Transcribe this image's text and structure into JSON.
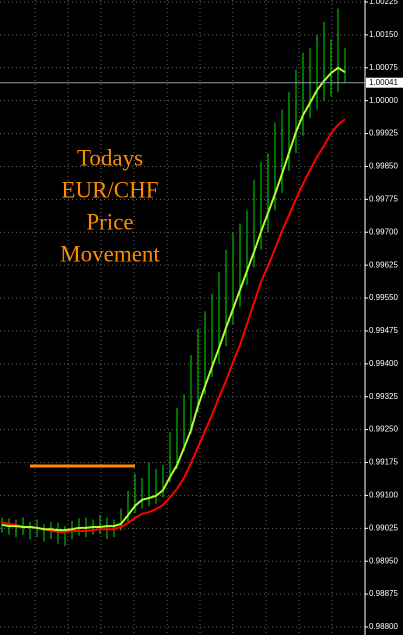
{
  "chart_data": {
    "type": "ohlc",
    "annotation": [
      "Todays",
      "EUR/CHF",
      "Price",
      "Movement"
    ],
    "annotation_color": "#ff8c00",
    "ylim": [
      0.988,
      1.00225
    ],
    "yticks": [
      1.00225,
      {
        "value": 1.0015,
        "label": "1.00150"
      },
      1.00075,
      {
        "value": 1,
        "label": "1.00000"
      },
      0.99925,
      {
        "value": 0.9985,
        "label": "0.99850"
      },
      0.99775,
      {
        "value": 0.997,
        "label": "0.99700"
      },
      0.99625,
      {
        "value": 0.9955,
        "label": "0.99550"
      },
      0.99475,
      {
        "value": 0.994,
        "label": "0.99400"
      },
      0.99325,
      {
        "value": 0.9925,
        "label": "0.99250"
      },
      0.99175,
      {
        "value": 0.991,
        "label": "0.99100"
      },
      0.99025,
      {
        "value": 0.9895,
        "label": "0.98950"
      },
      0.98875,
      {
        "value": 0.988,
        "label": "0.98800"
      }
    ],
    "grid": true,
    "current_price": 1.00041,
    "level_line": {
      "value": 0.99167,
      "color": "#ff8c00"
    },
    "bars": {
      "color": "#00e000",
      "high": [
        0.9905,
        0.99048,
        0.99045,
        0.9905,
        0.9904,
        0.99045,
        0.99035,
        0.9904,
        0.99038,
        0.9903,
        0.99042,
        0.99048,
        0.9905,
        0.99045,
        0.99055,
        0.9905,
        0.99045,
        0.9907,
        0.9911,
        0.9915,
        0.9914,
        0.99175,
        0.9916,
        0.9917,
        0.99245,
        0.993,
        0.9933,
        0.9942,
        0.9948,
        0.9952,
        0.9956,
        0.9961,
        0.9966,
        0.997,
        0.9972,
        0.9975,
        0.9982,
        0.9986,
        0.9988,
        0.9995,
        0.9998,
        1.0002,
        1.0007,
        1.0011,
        1.0012,
        1.0015,
        1.0018,
        1.0014,
        1.0021,
        1.0012
      ],
      "low": [
        0.99015,
        0.9901,
        0.99005,
        0.9901,
        0.99,
        0.99005,
        0.98995,
        0.99,
        0.9899,
        0.98985,
        0.99,
        0.99008,
        0.99005,
        0.9901,
        0.99012,
        0.99,
        0.99005,
        0.9902,
        0.9904,
        0.9906,
        0.9907,
        0.99075,
        0.9908,
        0.99095,
        0.9913,
        0.9916,
        0.992,
        0.9924,
        0.9929,
        0.9933,
        0.9937,
        0.994,
        0.9944,
        0.9949,
        0.9953,
        0.9958,
        0.9962,
        0.9966,
        0.997,
        0.9975,
        0.9979,
        0.9984,
        0.9988,
        0.9992,
        0.9996,
        0.9998,
        1.0,
        1.0001,
        1.0002,
        1.0004
      ]
    },
    "lines": [
      {
        "color": "#adff2f",
        "values": [
          0.99033,
          0.9903,
          0.9903,
          0.99028,
          0.99028,
          0.99026,
          0.99023,
          0.99023,
          0.99021,
          0.99021,
          0.99023,
          0.99026,
          0.99026,
          0.99028,
          0.99028,
          0.9903,
          0.9903,
          0.99035,
          0.99055,
          0.99076,
          0.9909,
          0.99094,
          0.99099,
          0.99112,
          0.99142,
          0.99169,
          0.99208,
          0.99249,
          0.99304,
          0.99349,
          0.99393,
          0.99436,
          0.99482,
          0.99525,
          0.99568,
          0.99612,
          0.99655,
          0.99701,
          0.99744,
          0.99787,
          0.99833,
          0.99881,
          0.99929,
          0.99967,
          0.99995,
          1.00024,
          1.00045,
          1.00063,
          1.00075,
          1.00065
        ]
      },
      {
        "color": "#ff0000",
        "values": [
          0.99039,
          0.99035,
          0.99033,
          0.99028,
          0.99028,
          0.99026,
          0.99023,
          0.99019,
          0.99017,
          0.99017,
          0.99019,
          0.99019,
          0.99019,
          0.99021,
          0.99023,
          0.99023,
          0.99023,
          0.99028,
          0.99037,
          0.99049,
          0.99058,
          0.99062,
          0.99069,
          0.99078,
          0.99096,
          0.99115,
          0.9914,
          0.99174,
          0.9921,
          0.99247,
          0.99283,
          0.99324,
          0.99361,
          0.99404,
          0.99443,
          0.99491,
          0.99539,
          0.99587,
          0.99623,
          0.99662,
          0.99703,
          0.99739,
          0.99776,
          0.9981,
          0.99842,
          0.99872,
          0.99897,
          0.99926,
          0.99945,
          0.99958
        ]
      }
    ]
  }
}
